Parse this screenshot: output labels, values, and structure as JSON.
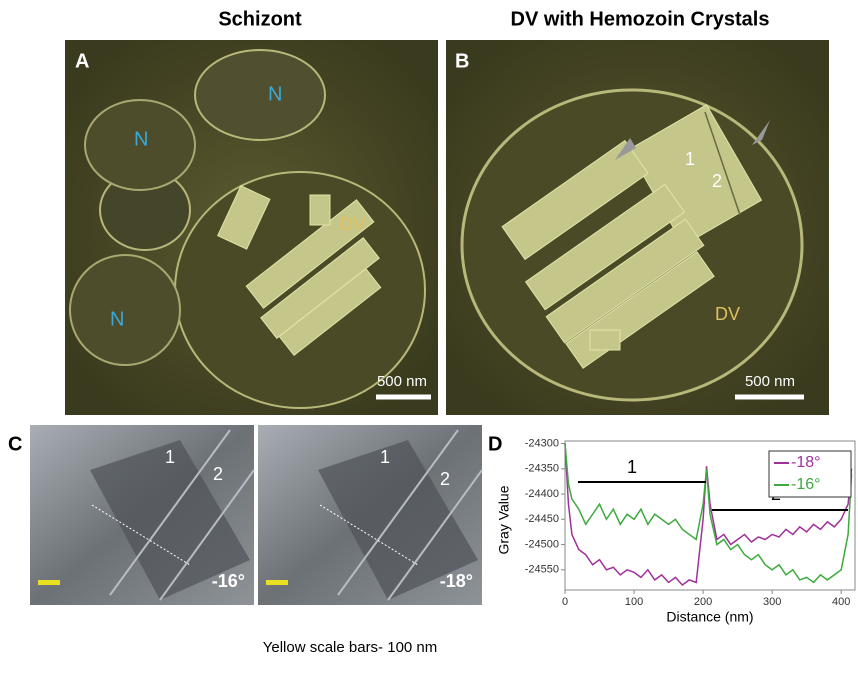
{
  "panels": {
    "a": {
      "label": "A",
      "title": "Schizont",
      "annotations": [
        "N",
        "N",
        "N",
        "DV"
      ],
      "scale_bar": "500 nm"
    },
    "b": {
      "label": "B",
      "title": "DV with Hemozoin Crystals",
      "annotations": [
        "1",
        "2",
        "DV"
      ],
      "scale_bar": "500 nm"
    },
    "c": {
      "label": "C",
      "images": [
        {
          "annotations": [
            "1",
            "2"
          ],
          "angle": "-16°"
        },
        {
          "annotations": [
            "1",
            "2"
          ],
          "angle": "-18°"
        }
      ],
      "caption": "Yellow scale bars- 100 nm"
    },
    "d": {
      "label": "D"
    }
  },
  "chart_data": {
    "type": "line",
    "xlabel": "Distance (nm)",
    "ylabel": "Gray Value",
    "annotations": [
      "1",
      "2"
    ],
    "x": [
      0,
      5,
      10,
      20,
      30,
      40,
      50,
      60,
      70,
      80,
      90,
      100,
      110,
      120,
      130,
      140,
      150,
      160,
      170,
      180,
      190,
      200,
      205,
      210,
      220,
      230,
      240,
      250,
      260,
      270,
      280,
      290,
      300,
      310,
      320,
      330,
      340,
      350,
      360,
      370,
      380,
      390,
      400,
      410,
      415
    ],
    "series": [
      {
        "name": "-18°",
        "color": "#a0309a",
        "values": [
          -24300,
          -24420,
          -24480,
          -24510,
          -24520,
          -24540,
          -24530,
          -24550,
          -24545,
          -24560,
          -24550,
          -24555,
          -24565,
          -24550,
          -24570,
          -24560,
          -24575,
          -24565,
          -24580,
          -24570,
          -24575,
          -24450,
          -24345,
          -24420,
          -24490,
          -24480,
          -24500,
          -24490,
          -24480,
          -24495,
          -24485,
          -24490,
          -24480,
          -24485,
          -24470,
          -24480,
          -24465,
          -24475,
          -24460,
          -24470,
          -24455,
          -24465,
          -24450,
          -24420,
          -24350
        ]
      },
      {
        "name": "-16°",
        "color": "#3caa3c",
        "values": [
          -24300,
          -24380,
          -24410,
          -24430,
          -24460,
          -24440,
          -24420,
          -24450,
          -24430,
          -24460,
          -24440,
          -24450,
          -24430,
          -24460,
          -24440,
          -24450,
          -24460,
          -24450,
          -24470,
          -24480,
          -24490,
          -24420,
          -24350,
          -24440,
          -24500,
          -24490,
          -24510,
          -24500,
          -24520,
          -24530,
          -24520,
          -24540,
          -24550,
          -24540,
          -24560,
          -24550,
          -24570,
          -24565,
          -24575,
          -24560,
          -24570,
          -24560,
          -24550,
          -24480,
          -24360
        ]
      }
    ],
    "xlim": [
      0,
      420
    ],
    "ylim": [
      -24590,
      -24295
    ],
    "xticks": [
      0,
      100,
      200,
      300,
      400
    ],
    "yticks": [
      -24300,
      -24350,
      -24400,
      -24450,
      -24500,
      -24550
    ],
    "legend": "upper right"
  }
}
